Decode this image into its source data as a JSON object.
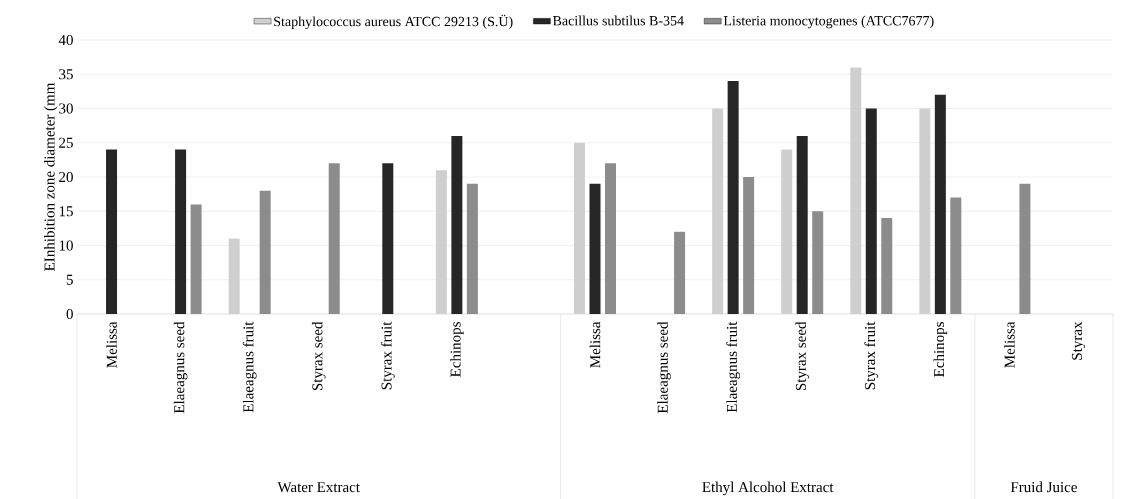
{
  "chart_data": {
    "type": "bar",
    "ylabel": "EInhibition zone diameter (mm",
    "categories": [
      "Melissa",
      "Elaeagnus seed",
      "Elaeagnus fruit",
      "Styrax seed",
      "Styrax fruit",
      "Echinops",
      null,
      "Melissa",
      "Elaeagnus seed",
      "Elaeagnus fruit",
      "Styrax seed",
      "Styrax fruit",
      "Echinops",
      "Melissa",
      "Styrax"
    ],
    "series": [
      {
        "name": "Staphylococcus aureus ATCC 29213 (S.Ü)",
        "color": "#cfcfcf",
        "values": [
          null,
          null,
          11,
          null,
          null,
          21,
          null,
          25,
          null,
          30,
          24,
          36,
          30,
          null,
          null
        ]
      },
      {
        "name": "Bacillus subtilus B-354",
        "color": "#262626",
        "values": [
          24,
          24,
          null,
          null,
          22,
          26,
          null,
          19,
          null,
          34,
          26,
          30,
          32,
          null,
          null
        ]
      },
      {
        "name": "Listeria monocytogenes (ATCC7677)",
        "color": "#8c8c8c",
        "values": [
          null,
          16,
          18,
          22,
          null,
          19,
          null,
          22,
          12,
          20,
          15,
          14,
          17,
          19,
          null
        ]
      }
    ],
    "ylim": [
      0,
      40
    ],
    "yticks": [
      0,
      5,
      10,
      15,
      20,
      25,
      30,
      35,
      40
    ],
    "grid": "y",
    "legend": "top",
    "annotations": [
      "Water Extract",
      "Ethyl Alcohol Extract",
      "Fruid Juice"
    ]
  }
}
